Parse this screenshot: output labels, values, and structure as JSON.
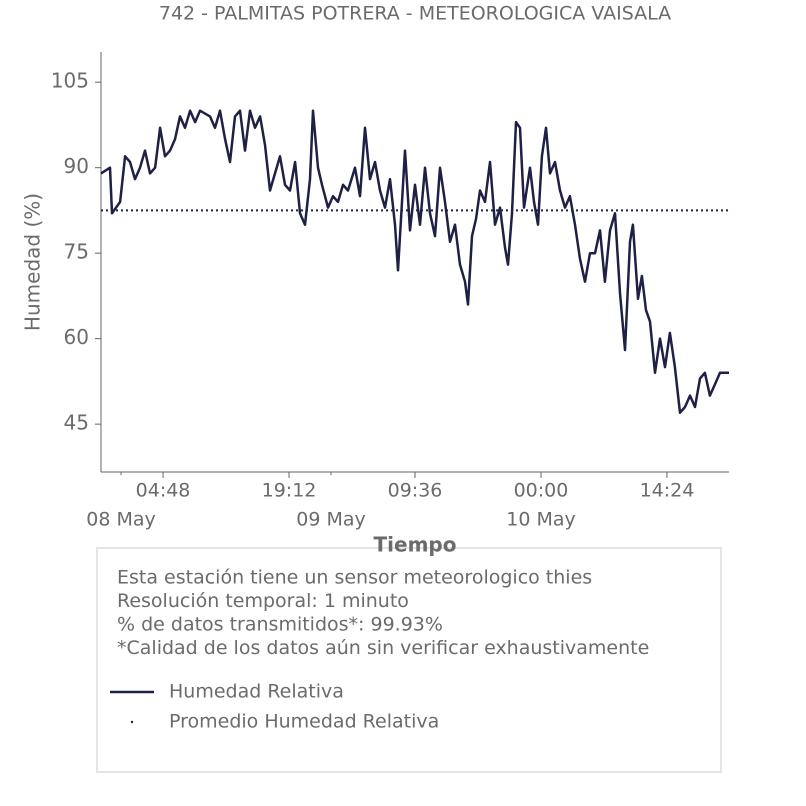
{
  "chart_data": {
    "type": "line",
    "title": "742 - PALMITAS POTRERA - METEOROLOGICA VAISALA",
    "xlabel": "Tiempo",
    "ylabel": "Humedad (%)",
    "series": [
      {
        "name": "Humedad Relativa",
        "color": "#1f2045",
        "x": [
          -2.29,
          -1.26,
          -1.03,
          -0.11,
          0.46,
          1.03,
          1.6,
          2.17,
          2.74,
          3.31,
          3.89,
          4.46,
          5.03,
          5.6,
          6.17,
          6.74,
          7.31,
          7.89,
          8.46,
          9.03,
          10.17,
          10.74,
          11.31,
          11.89,
          12.46,
          13.03,
          13.6,
          14.17,
          14.74,
          15.31,
          15.89,
          16.46,
          17.03,
          17.6,
          18.17,
          18.74,
          19.31,
          19.89,
          20.46,
          21.03,
          21.6,
          21.94,
          22.51,
          22.97,
          23.66,
          24.23,
          24.8,
          25.37,
          25.94,
          26.74,
          27.31,
          27.89,
          28.46,
          29.03,
          29.6,
          30.17,
          30.74,
          31.31,
          31.66,
          32.11,
          32.46,
          33.03,
          33.6,
          34.17,
          34.74,
          35.31,
          35.89,
          36.46,
          37.03,
          37.6,
          38.17,
          38.74,
          39.31,
          39.66,
          40.11,
          40.57,
          41.03,
          41.6,
          42.17,
          42.74,
          43.31,
          43.89,
          44.23,
          44.69,
          45.14,
          45.6,
          46.06,
          46.74,
          47.2,
          47.66,
          48.11,
          48.57,
          49.03,
          49.6,
          50.17,
          50.74,
          51.31,
          51.89,
          52.46,
          53.03,
          53.6,
          54.17,
          54.74,
          55.31,
          55.89,
          56.46,
          57.03,
          57.6,
          58.17,
          58.51,
          59.09,
          59.54,
          60,
          60.46,
          61.03,
          61.6,
          62.17,
          62.74,
          63.31,
          63.89,
          64.46,
          65.03,
          65.6,
          66.17,
          66.74,
          67.31,
          67.89,
          68.46,
          69.03,
          69.49
        ],
        "values": [
          89,
          90,
          82,
          84,
          92,
          91,
          88,
          90,
          93,
          89,
          90,
          97,
          92,
          93,
          95,
          99,
          97,
          100,
          98,
          100,
          99,
          97,
          100,
          95,
          91,
          99,
          100,
          93,
          100,
          97,
          99,
          94,
          86,
          89,
          92,
          87,
          86,
          91,
          82,
          80,
          88,
          100,
          90,
          87,
          83,
          85,
          84,
          87,
          86,
          90,
          85,
          97,
          88,
          91,
          86,
          83,
          88,
          80,
          72,
          84,
          93,
          79,
          87,
          80,
          90,
          82,
          78,
          90,
          84,
          77,
          80,
          73,
          70,
          66,
          78,
          81,
          86,
          84,
          91,
          80,
          83,
          76,
          73,
          82,
          98,
          97,
          83,
          90,
          84,
          80,
          92,
          97,
          89,
          91,
          86,
          83,
          85,
          80,
          74,
          70,
          75,
          75,
          79,
          70,
          79,
          82,
          68,
          58,
          77,
          80,
          67,
          71,
          65,
          63,
          54,
          60,
          55,
          61,
          55,
          47,
          48,
          50,
          48,
          53,
          54,
          50,
          52,
          54,
          54,
          54
        ]
      }
    ],
    "mean": {
      "name": "Promedio Humedad Relativa",
      "value": 82.5,
      "color": "#1f2045"
    },
    "xlim": [
      -2.29,
      69.49
    ],
    "xticks": [
      {
        "value": 4.8,
        "label": "04:48"
      },
      {
        "value": 19.2,
        "label": "19:12"
      },
      {
        "value": 33.6,
        "label": "09:36"
      },
      {
        "value": 48,
        "label": "00:00"
      },
      {
        "value": 62.4,
        "label": "14:24"
      }
    ],
    "xticks_minor": [
      {
        "value": 0,
        "label": "08 May"
      },
      {
        "value": 24,
        "label": "09 May"
      },
      {
        "value": 48,
        "label": "10 May"
      }
    ],
    "ylim": [
      36.6,
      110.3
    ],
    "yticks": [
      45,
      60,
      75,
      90,
      105
    ],
    "info": [
      "Esta estación tiene un sensor meteorologico thies",
      "Resolución temporal: 1 minuto",
      "% de datos transmitidos*: 99.93%",
      "*Calidad de los datos aún sin verificar exhaustivamente"
    ]
  }
}
